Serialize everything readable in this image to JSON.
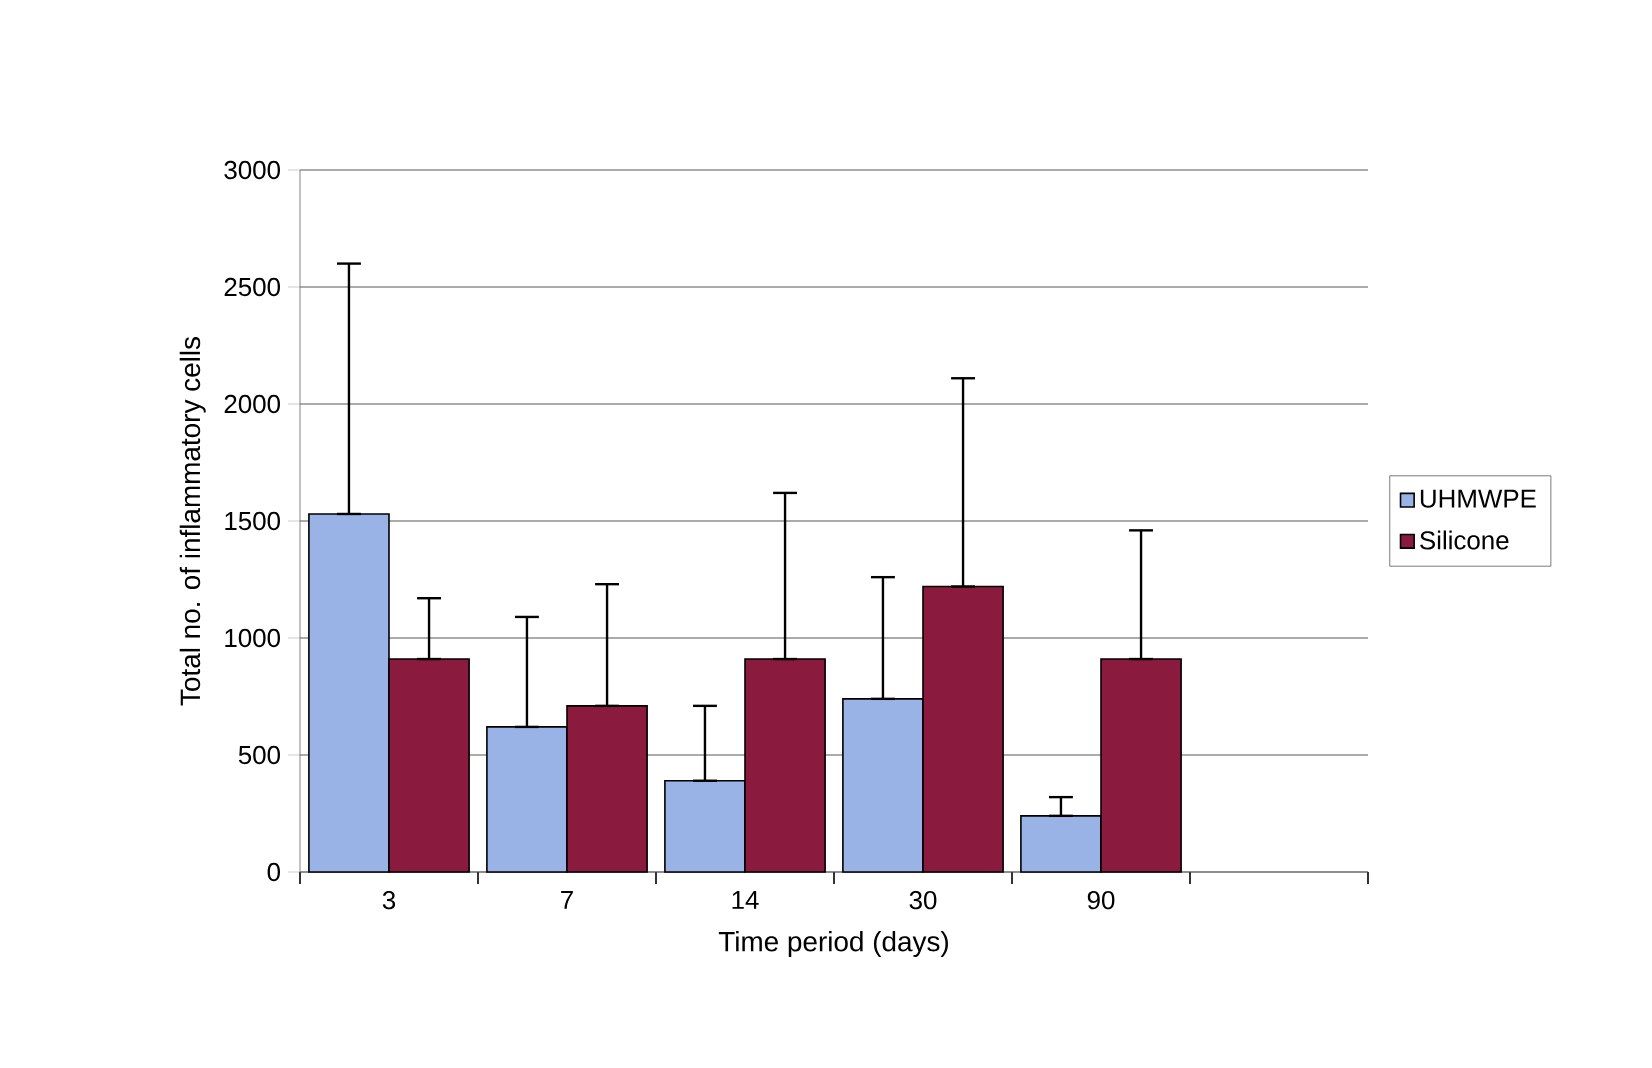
{
  "chart_data": {
    "type": "bar",
    "xlabel": "Time period (days)",
    "ylabel": "Total no. of inflammatory cells",
    "categories": [
      "3",
      "7",
      "14",
      "30",
      "90",
      null
    ],
    "series": [
      {
        "name": "UHMWPE",
        "color": "#99b3e6",
        "values": [
          1530,
          620,
          390,
          740,
          240,
          null
        ],
        "errors": [
          [
            1530,
            2600
          ],
          [
            620,
            1090
          ],
          [
            390,
            710
          ],
          [
            740,
            1260
          ],
          [
            240,
            320
          ],
          null
        ]
      },
      {
        "name": "Silicone",
        "color": "#8b1a3f",
        "values": [
          910,
          710,
          910,
          1220,
          910,
          null
        ],
        "errors": [
          [
            910,
            1170
          ],
          [
            710,
            1230
          ],
          [
            910,
            1620
          ],
          [
            1220,
            2110
          ],
          [
            910,
            1460
          ],
          null
        ]
      }
    ],
    "ylim": [
      0,
      3000
    ],
    "yticks": [
      0,
      500,
      1000,
      1500,
      2000,
      2500,
      3000
    ],
    "grid": "y",
    "legend": "right"
  }
}
